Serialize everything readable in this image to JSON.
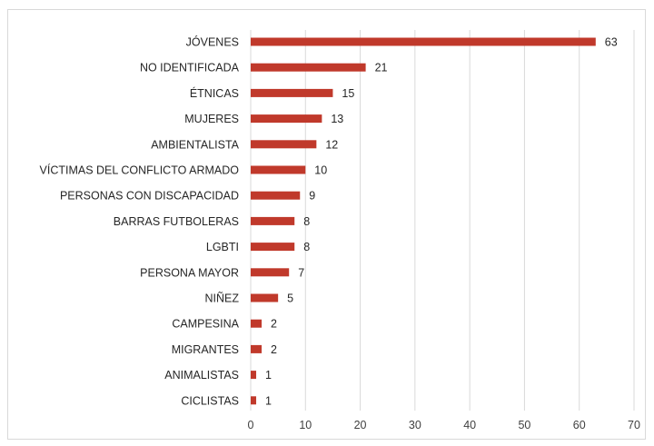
{
  "chart_data": {
    "type": "bar",
    "orientation": "horizontal",
    "categories": [
      "JÓVENES",
      "NO IDENTIFICADA",
      "ÉTNICAS",
      "MUJERES",
      "AMBIENTALISTA",
      "VÍCTIMAS DEL CONFLICTO ARMADO",
      "PERSONAS CON DISCAPACIDAD",
      "BARRAS FUTBOLERAS",
      "LGBTI",
      "PERSONA MAYOR",
      "NIÑEZ",
      "CAMPESINA",
      "MIGRANTES",
      "ANIMALISTAS",
      "CICLISTAS"
    ],
    "values": [
      63,
      21,
      15,
      13,
      12,
      10,
      9,
      8,
      8,
      7,
      5,
      2,
      2,
      1,
      1
    ],
    "xlim": [
      0,
      70
    ],
    "xticks": [
      0,
      10,
      20,
      30,
      40,
      50,
      60,
      70
    ],
    "grid": "vertical",
    "data_labels": true,
    "bar_color": "#c0392b"
  },
  "colors": {
    "bar": "#c0392b",
    "grid": "#d9d9d9",
    "frame": "#d9d9d9",
    "text": "#262626"
  }
}
